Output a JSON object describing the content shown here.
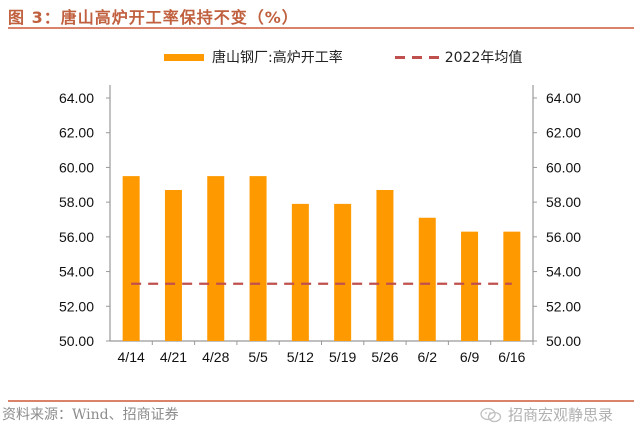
{
  "title": "图 3：唐山高炉开工率保持不变（%）",
  "legend": {
    "bar_label": "唐山钢厂:高炉开工率",
    "line_label": "2022年均值"
  },
  "source": "资料来源：Wind、招商证券",
  "watermark": "招商宏观静思录",
  "colors": {
    "bar": "#FF9900",
    "avg_line": "#C0504D",
    "title": "#C0603E",
    "rule": "#D9836B",
    "axis": "#999999"
  },
  "chart_data": {
    "type": "bar",
    "title": "唐山高炉开工率保持不变（%）",
    "xlabel": "",
    "ylabel": "",
    "categories": [
      "4/14",
      "4/21",
      "4/28",
      "5/5",
      "5/12",
      "5/19",
      "5/26",
      "6/2",
      "6/9",
      "6/16"
    ],
    "series": [
      {
        "name": "唐山钢厂:高炉开工率",
        "type": "bar",
        "values": [
          59.5,
          58.7,
          59.5,
          59.5,
          57.9,
          57.9,
          58.7,
          57.1,
          56.3,
          56.3
        ]
      },
      {
        "name": "2022年均值",
        "type": "line",
        "style": "dashed",
        "values": [
          53.3,
          53.3,
          53.3,
          53.3,
          53.3,
          53.3,
          53.3,
          53.3,
          53.3,
          53.3
        ]
      }
    ],
    "ylim": [
      50,
      64
    ],
    "yticks": [
      "50.00",
      "52.00",
      "54.00",
      "56.00",
      "58.00",
      "60.00",
      "62.00",
      "64.00"
    ],
    "y2ticks": [
      "50.00",
      "52.00",
      "54.00",
      "56.00",
      "58.00",
      "60.00",
      "62.00",
      "64.00"
    ],
    "grid": false,
    "legend_position": "top"
  }
}
